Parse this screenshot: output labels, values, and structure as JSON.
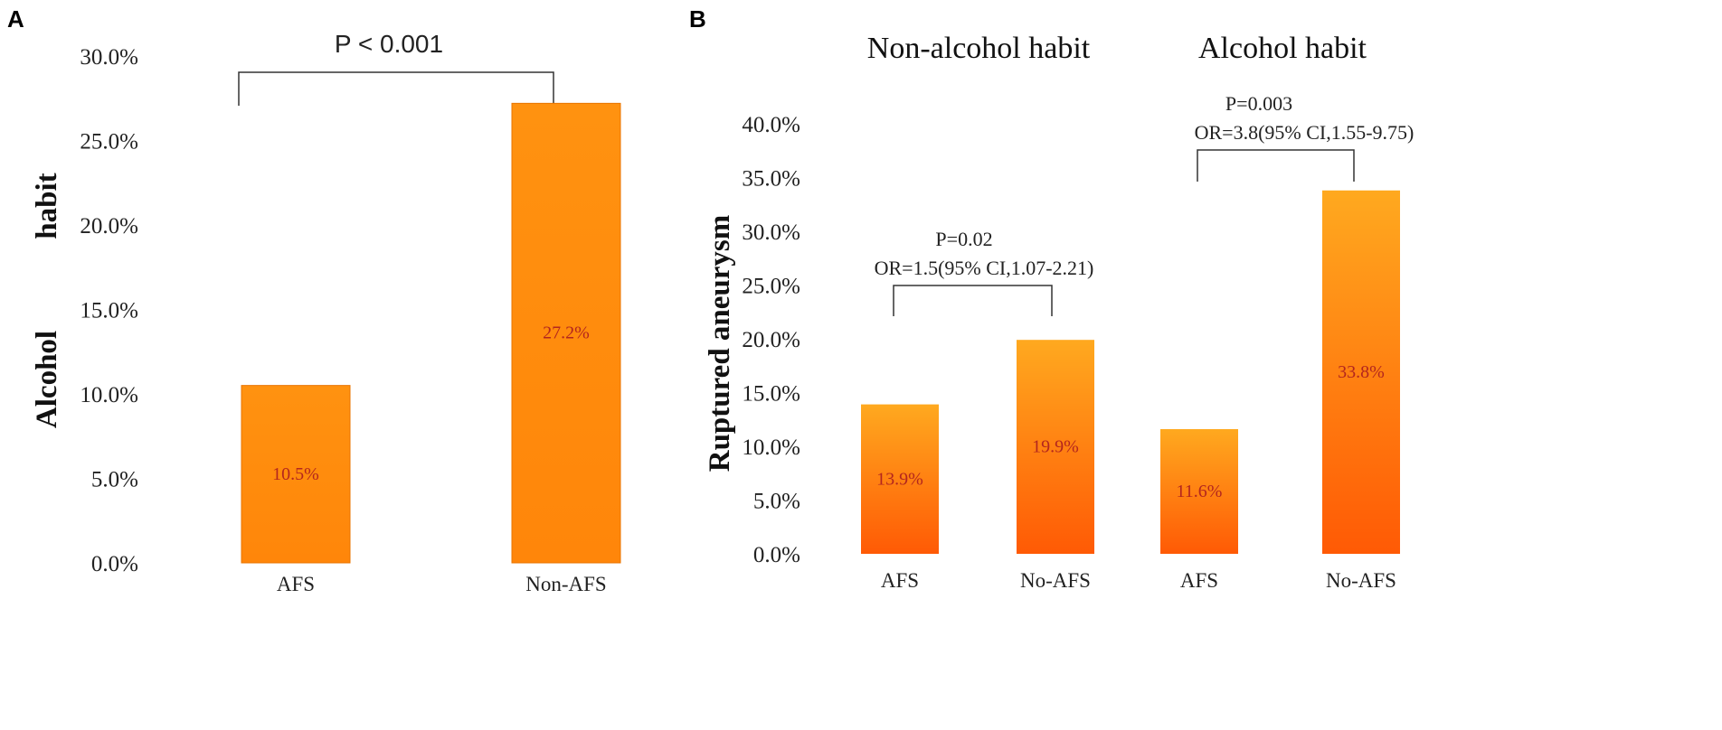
{
  "panels": {
    "A": {
      "letter": "A"
    },
    "B": {
      "letter": "B"
    }
  },
  "colors": {
    "bar_light": "#ffa91f",
    "bar_dark": "#ff5a05",
    "bar_solid": "#ff8c0a",
    "bracket": "#333333"
  },
  "chart_data": [
    {
      "type": "bar",
      "panel": "A",
      "title": "",
      "ylabel_top": "habit",
      "ylabel_bottom": "Alcohol",
      "categories": [
        "AFS",
        "Non-AFS"
      ],
      "values": [
        10.5,
        27.2
      ],
      "value_labels": [
        "10.5%",
        "27.2%"
      ],
      "ylim": [
        0,
        30
      ],
      "yticks": [
        "0.0%",
        "5.0%",
        "10.0%",
        "15.0%",
        "20.0%",
        "25.0%",
        "30.0%"
      ],
      "annotation": {
        "text": "P < 0.001"
      }
    },
    {
      "type": "bar",
      "panel": "B",
      "ylabel": "Ruptured aneurysm",
      "ylim": [
        0,
        40
      ],
      "yticks": [
        "0.0%",
        "5.0%",
        "10.0%",
        "15.0%",
        "20.0%",
        "25.0%",
        "30.0%",
        "35.0%",
        "40.0%"
      ],
      "groups": [
        {
          "title": "Non-alcohol habit",
          "categories": [
            "AFS",
            "No-AFS"
          ],
          "values": [
            13.9,
            19.9
          ],
          "value_labels": [
            "13.9%",
            "19.9%"
          ],
          "p_text": "P=0.02",
          "or_text": "OR=1.5(95% CI,1.07-2.21)"
        },
        {
          "title": "Alcohol habit",
          "categories": [
            "AFS",
            "No-AFS"
          ],
          "values": [
            11.6,
            33.8
          ],
          "value_labels": [
            "11.6%",
            "33.8%"
          ],
          "p_text": "P=0.003",
          "or_text": "OR=3.8(95% CI,1.55-9.75)"
        }
      ]
    }
  ]
}
